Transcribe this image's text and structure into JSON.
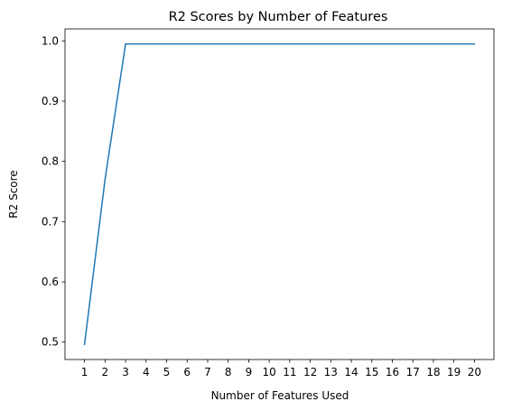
{
  "chart_data": {
    "type": "line",
    "title": "R2 Scores by Number of Features",
    "xlabel": "Number of Features Used",
    "ylabel": "R2 Score",
    "x": [
      1,
      2,
      3,
      4,
      5,
      6,
      7,
      8,
      9,
      10,
      11,
      12,
      13,
      14,
      15,
      16,
      17,
      18,
      19,
      20
    ],
    "series": [
      {
        "values": [
          0.496,
          0.77,
          0.995,
          0.995,
          0.995,
          0.995,
          0.995,
          0.995,
          0.995,
          0.995,
          0.995,
          0.995,
          0.995,
          0.995,
          0.995,
          0.995,
          0.995,
          0.995,
          0.995,
          0.995
        ],
        "color": "#1f77b4"
      }
    ],
    "xticks": [
      "1",
      "2",
      "3",
      "4",
      "5",
      "6",
      "7",
      "8",
      "9",
      "10",
      "11",
      "12",
      "13",
      "14",
      "15",
      "16",
      "17",
      "18",
      "19",
      "20"
    ],
    "yticks": [
      0.5,
      0.6,
      0.7,
      0.8,
      0.9,
      1.0
    ],
    "ytick_labels": [
      "0.5",
      "0.6",
      "0.7",
      "0.8",
      "0.9",
      "1.0"
    ],
    "xlim": [
      0.05,
      20.95
    ],
    "ylim": [
      0.4711,
      1.0199
    ],
    "grid": false,
    "legend": false
  }
}
